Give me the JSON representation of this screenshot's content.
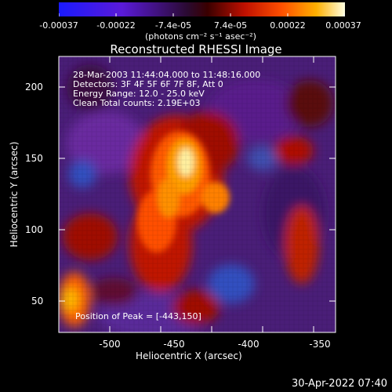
{
  "colorbar": {
    "ticks": [
      "-0.00037",
      "-0.00022",
      "-7.4e-05",
      "7.4e-05",
      "0.00022",
      "0.00037"
    ],
    "units": "(photons cm⁻² s⁻¹ asec⁻²)"
  },
  "title": "Reconstructed RHESSI Image",
  "info": {
    "line1": "28-Mar-2003 11:44:04.000 to 11:48:16.000",
    "line2": "Detectors: 3F 4F 5F 6F 7F 8F, Att 0",
    "line3": "Energy Range: 12.0 - 25.0 keV",
    "line4": "Clean     Total counts: 2.19E+03"
  },
  "peak": "Position of Peak = [-443,150]",
  "x_ticks": [
    "-500",
    "-450",
    "-400",
    "-350"
  ],
  "y_ticks": [
    "200",
    "150",
    "100",
    "50"
  ],
  "xlabel": "Heliocentric X (arcsec)",
  "ylabel": "Heliocentric Y (arcsec)",
  "timestamp": "30-Apr-2022 07:40",
  "colors": {
    "background": "#000000",
    "text": "#ffffff"
  }
}
